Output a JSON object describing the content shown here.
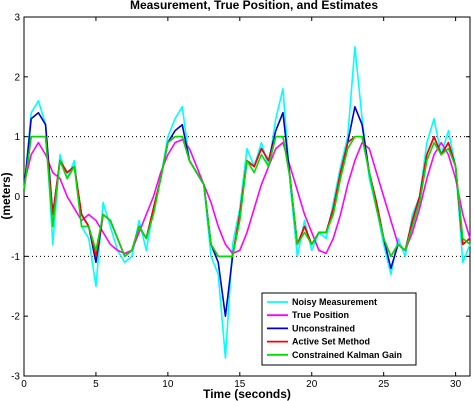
{
  "chart_data": {
    "type": "line",
    "title": "Measurement, True Position, and Estimates",
    "xlabel": "Time (seconds)",
    "ylabel": "(meters)",
    "xlim": [
      0,
      31
    ],
    "ylim": [
      -3,
      3
    ],
    "xticks": [
      0,
      5,
      10,
      15,
      20,
      25,
      30
    ],
    "yticks": [
      -3,
      -2,
      -1,
      0,
      1,
      2,
      3
    ],
    "reference_lines": [
      1,
      -1
    ],
    "legend_position": "bottom-right",
    "x": [
      0,
      0.5,
      1,
      1.5,
      2,
      2.5,
      3,
      3.5,
      4,
      4.5,
      5,
      5.5,
      6,
      6.5,
      7,
      7.5,
      8,
      8.5,
      9,
      9.5,
      10,
      10.5,
      11,
      11.5,
      12,
      12.5,
      13,
      13.5,
      14,
      14.5,
      15,
      15.5,
      16,
      16.5,
      17,
      17.5,
      18,
      18.5,
      19,
      19.5,
      20,
      20.5,
      21,
      21.5,
      22,
      22.5,
      23,
      23.5,
      24,
      24.5,
      25,
      25.5,
      26,
      26.5,
      27,
      27.5,
      28,
      28.5,
      29,
      29.5,
      30,
      30.5,
      31
    ],
    "series": [
      {
        "name": "Noisy Measurement",
        "color": "#00ffff",
        "values": [
          0.1,
          1.4,
          1.6,
          1.2,
          -0.8,
          0.7,
          0.3,
          0.6,
          -0.5,
          -0.7,
          -1.5,
          -0.1,
          -0.5,
          -0.9,
          -1.1,
          -1.0,
          -0.4,
          -0.9,
          -0.2,
          0.3,
          1.0,
          1.3,
          1.5,
          0.6,
          0.4,
          0.2,
          -1.0,
          -1.3,
          -2.7,
          -0.8,
          -0.2,
          0.8,
          0.5,
          0.9,
          0.5,
          1.3,
          1.8,
          0.2,
          -1.0,
          -0.4,
          -0.9,
          -0.6,
          -0.7,
          -0.1,
          0.5,
          1.0,
          2.5,
          1.3,
          0.3,
          -0.2,
          -0.8,
          -1.3,
          -0.7,
          -1.0,
          -0.3,
          0.0,
          0.9,
          1.3,
          0.7,
          1.1,
          0.5,
          -1.1,
          -0.8
        ]
      },
      {
        "name": "True Position",
        "color": "#ff00ff",
        "values": [
          0.2,
          0.7,
          0.9,
          0.7,
          0.4,
          0.3,
          0.0,
          -0.2,
          -0.4,
          -0.3,
          -0.4,
          -0.6,
          -0.8,
          -0.9,
          -0.95,
          -0.9,
          -0.6,
          -0.3,
          0.0,
          0.4,
          0.7,
          0.9,
          0.95,
          0.8,
          0.5,
          0.2,
          -0.1,
          -0.5,
          -0.8,
          -0.95,
          -0.9,
          -0.6,
          -0.2,
          0.2,
          0.5,
          0.8,
          0.9,
          0.5,
          0.1,
          -0.3,
          -0.6,
          -0.9,
          -0.95,
          -0.7,
          -0.3,
          0.2,
          0.6,
          0.9,
          0.8,
          0.4,
          0.0,
          -0.4,
          -0.8,
          -0.9,
          -0.6,
          -0.2,
          0.3,
          0.7,
          0.9,
          0.7,
          0.3,
          -0.3,
          -0.7
        ]
      },
      {
        "name": "Unconstrained",
        "color": "#0000cc",
        "values": [
          0.1,
          1.3,
          1.4,
          1.2,
          -0.3,
          0.6,
          0.4,
          0.5,
          -0.3,
          -0.5,
          -1.1,
          -0.3,
          -0.4,
          -0.7,
          -1.0,
          -0.9,
          -0.5,
          -0.7,
          -0.2,
          0.3,
          0.9,
          1.1,
          1.2,
          0.6,
          0.4,
          0.2,
          -0.8,
          -1.1,
          -2.0,
          -1.0,
          -0.3,
          0.6,
          0.5,
          0.8,
          0.6,
          1.1,
          1.4,
          0.3,
          -0.8,
          -0.5,
          -0.8,
          -0.6,
          -0.6,
          -0.2,
          0.4,
          0.9,
          1.5,
          1.2,
          0.4,
          -0.1,
          -0.7,
          -1.2,
          -0.8,
          -0.9,
          -0.4,
          0.0,
          0.7,
          1.0,
          0.7,
          0.9,
          0.5,
          -0.8,
          -0.7
        ]
      },
      {
        "name": "Active Set Method",
        "color": "#ff0000",
        "values": [
          0.1,
          1.0,
          1.0,
          1.0,
          -0.3,
          0.6,
          0.4,
          0.5,
          -0.3,
          -0.5,
          -1.0,
          -0.3,
          -0.4,
          -0.7,
          -1.0,
          -0.9,
          -0.5,
          -0.7,
          -0.2,
          0.3,
          0.9,
          1.0,
          1.0,
          0.6,
          0.4,
          0.2,
          -0.8,
          -1.0,
          -1.0,
          -1.0,
          -0.3,
          0.6,
          0.5,
          0.8,
          0.6,
          1.0,
          1.0,
          0.3,
          -0.8,
          -0.5,
          -0.8,
          -0.6,
          -0.6,
          -0.2,
          0.4,
          0.9,
          1.0,
          1.0,
          0.4,
          -0.1,
          -0.7,
          -1.0,
          -0.8,
          -0.9,
          -0.4,
          0.0,
          0.7,
          1.0,
          0.7,
          0.9,
          0.5,
          -0.8,
          -0.7
        ]
      },
      {
        "name": "Constrained Kalman Gain",
        "color": "#00dd00",
        "values": [
          0.1,
          1.0,
          1.0,
          1.0,
          -0.5,
          0.6,
          0.3,
          0.5,
          -0.5,
          -0.5,
          -0.9,
          -0.3,
          -0.4,
          -0.7,
          -1.0,
          -0.9,
          -0.5,
          -0.7,
          -0.3,
          0.3,
          0.9,
          1.0,
          1.0,
          0.6,
          0.4,
          0.2,
          -0.8,
          -1.0,
          -1.0,
          -1.0,
          -0.4,
          0.6,
          0.4,
          0.7,
          0.5,
          1.0,
          1.0,
          0.3,
          -0.8,
          -0.6,
          -0.8,
          -0.6,
          -0.6,
          -0.3,
          0.3,
          0.8,
          1.0,
          1.0,
          0.4,
          -0.2,
          -0.7,
          -1.0,
          -0.8,
          -0.9,
          -0.5,
          -0.1,
          0.6,
          0.9,
          0.7,
          0.8,
          0.5,
          -0.7,
          -0.8
        ]
      }
    ]
  }
}
